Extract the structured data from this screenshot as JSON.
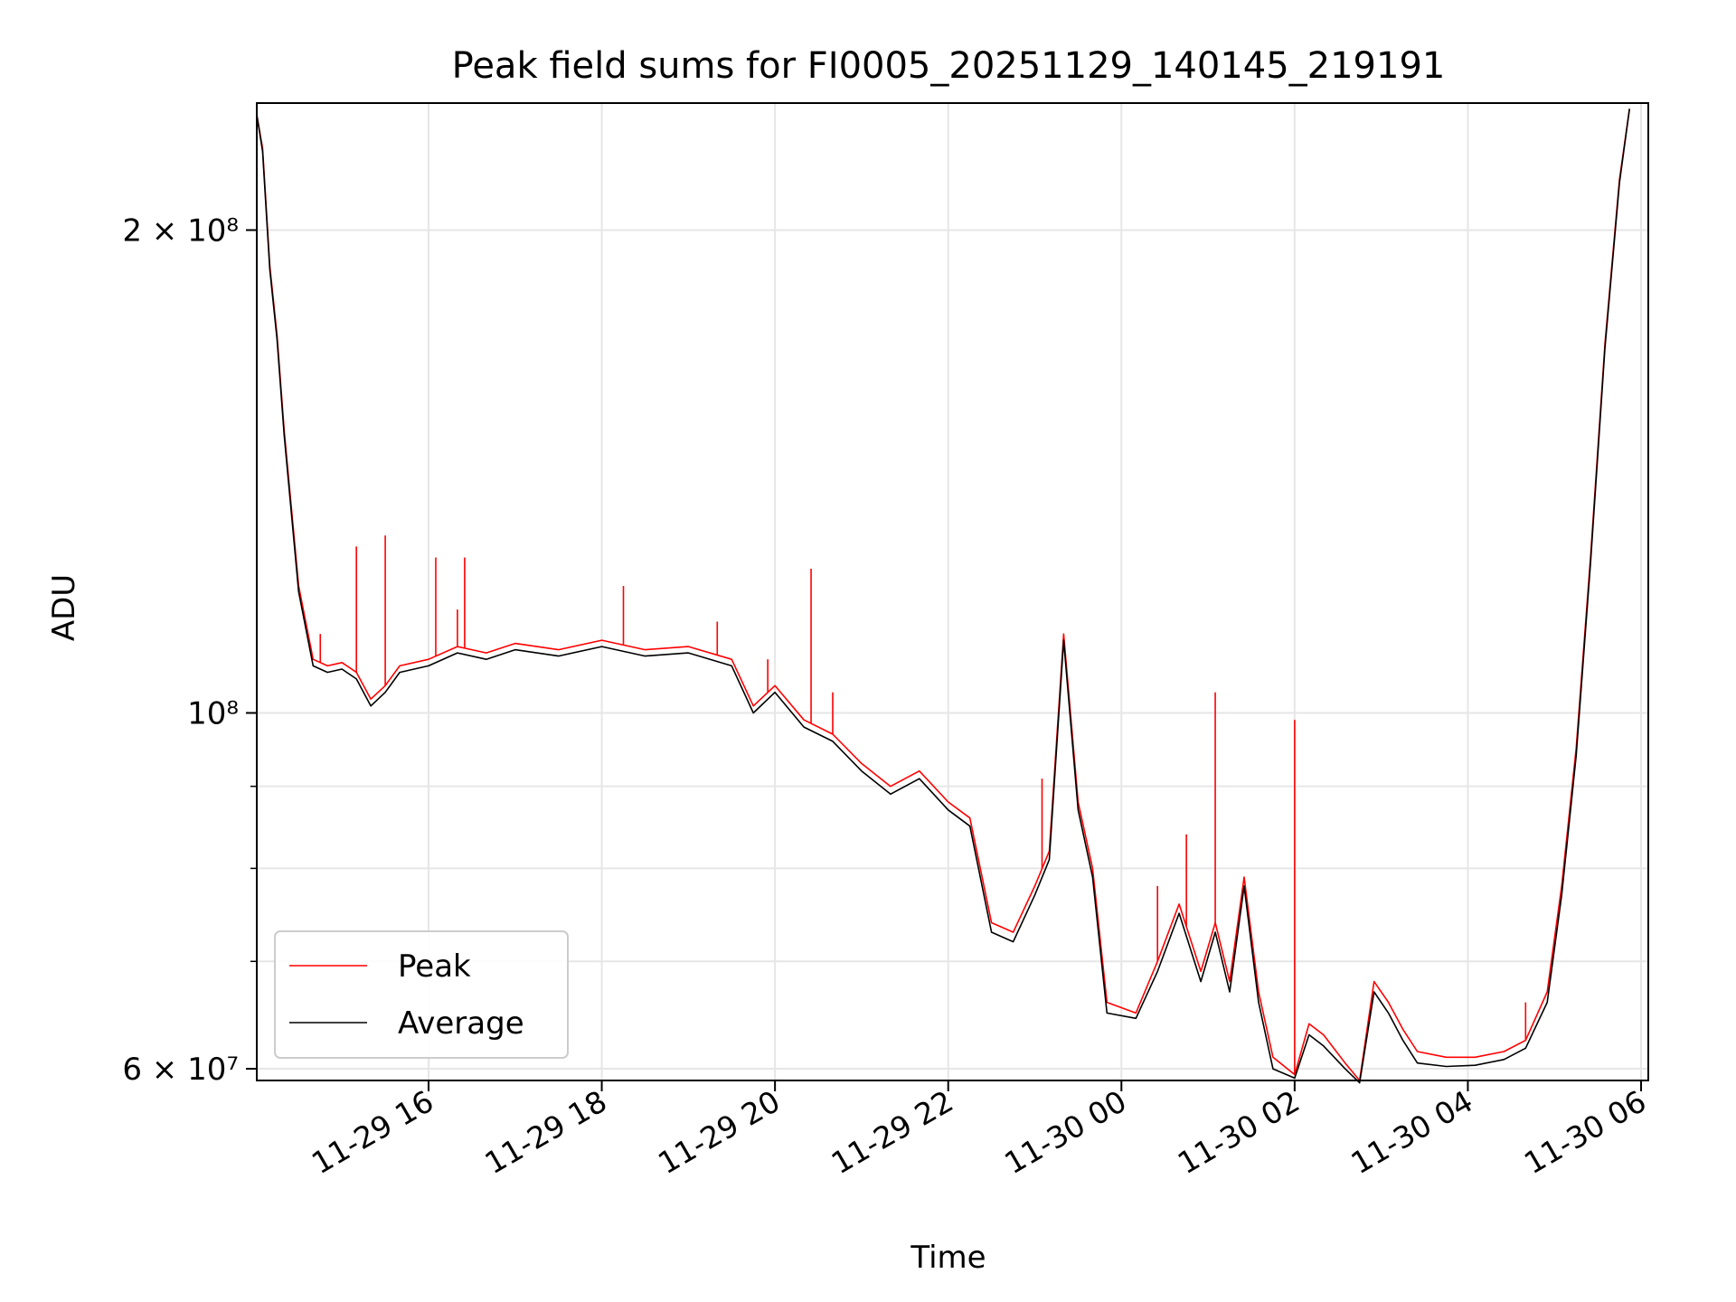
{
  "chart_data": {
    "type": "line",
    "title": "Peak field sums for FI0005_20251129_140145_219191",
    "xlabel": "Time",
    "ylabel": "ADU",
    "yscale": "log",
    "xlim": [
      "2025-11-29 14:01",
      "2025-11-30 06:05"
    ],
    "ylim": [
      59000000,
      240000000
    ],
    "grid": true,
    "legend_position": "lower-left",
    "x_ticks": [
      {
        "t": "2025-11-29 16:00",
        "label": "11-29 16"
      },
      {
        "t": "2025-11-29 18:00",
        "label": "11-29 18"
      },
      {
        "t": "2025-11-29 20:00",
        "label": "11-29 20"
      },
      {
        "t": "2025-11-29 22:00",
        "label": "11-29 22"
      },
      {
        "t": "2025-11-30 00:00",
        "label": "11-30 00"
      },
      {
        "t": "2025-11-30 02:00",
        "label": "11-30 02"
      },
      {
        "t": "2025-11-30 04:00",
        "label": "11-30 04"
      },
      {
        "t": "2025-11-30 06:00",
        "label": "11-30 06"
      }
    ],
    "y_ticks": [
      {
        "value": 60000000,
        "label": "6 × 10⁷"
      },
      {
        "value": 100000000,
        "label": "10⁸"
      },
      {
        "value": 200000000,
        "label": "2 × 10⁸"
      }
    ],
    "y_minor_ticks": [
      70000000,
      80000000,
      90000000
    ],
    "series": [
      {
        "name": "Peak",
        "color": "#ff0000",
        "x": [
          "2025-11-29 14:01",
          "2025-11-29 14:05",
          "2025-11-29 14:10",
          "2025-11-29 14:15",
          "2025-11-29 14:20",
          "2025-11-29 14:30",
          "2025-11-29 14:40",
          "2025-11-29 14:50",
          "2025-11-29 15:00",
          "2025-11-29 15:10",
          "2025-11-29 15:20",
          "2025-11-29 15:30",
          "2025-11-29 15:40",
          "2025-11-29 16:00",
          "2025-11-29 16:20",
          "2025-11-29 16:40",
          "2025-11-29 17:00",
          "2025-11-29 17:30",
          "2025-11-29 18:00",
          "2025-11-29 18:30",
          "2025-11-29 19:00",
          "2025-11-29 19:30",
          "2025-11-29 19:45",
          "2025-11-29 20:00",
          "2025-11-29 20:20",
          "2025-11-29 20:40",
          "2025-11-29 21:00",
          "2025-11-29 21:20",
          "2025-11-29 21:40",
          "2025-11-29 22:00",
          "2025-11-29 22:15",
          "2025-11-29 22:30",
          "2025-11-29 22:45",
          "2025-11-29 23:00",
          "2025-11-29 23:10",
          "2025-11-29 23:20",
          "2025-11-29 23:30",
          "2025-11-29 23:40",
          "2025-11-29 23:50",
          "2025-11-30 00:10",
          "2025-11-30 00:25",
          "2025-11-30 00:40",
          "2025-11-30 00:55",
          "2025-11-30 01:05",
          "2025-11-30 01:15",
          "2025-11-30 01:25",
          "2025-11-30 01:35",
          "2025-11-30 01:45",
          "2025-11-30 02:00",
          "2025-11-30 02:10",
          "2025-11-30 02:20",
          "2025-11-30 02:35",
          "2025-11-30 02:45",
          "2025-11-30 02:55",
          "2025-11-30 03:05",
          "2025-11-30 03:15",
          "2025-11-30 03:25",
          "2025-11-30 03:45",
          "2025-11-30 04:05",
          "2025-11-30 04:25",
          "2025-11-30 04:40",
          "2025-11-30 04:55",
          "2025-11-30 05:05",
          "2025-11-30 05:15",
          "2025-11-30 05:25",
          "2025-11-30 05:35",
          "2025-11-30 05:45",
          "2025-11-30 05:52"
        ],
        "y": [
          236000000,
          225000000,
          190000000,
          172000000,
          150000000,
          120000000,
          108000000,
          107000000,
          107500000,
          106000000,
          102000000,
          104000000,
          107000000,
          108000000,
          110000000,
          109000000,
          110500000,
          109500000,
          111000000,
          109500000,
          110000000,
          108000000,
          101000000,
          104000000,
          99000000,
          97000000,
          93000000,
          90000000,
          92000000,
          88000000,
          86000000,
          74000000,
          73000000,
          78000000,
          82000000,
          112000000,
          88000000,
          80000000,
          66000000,
          65000000,
          70000000,
          76000000,
          69000000,
          74000000,
          68000000,
          79000000,
          67000000,
          61000000,
          59500000,
          64000000,
          63000000,
          60500000,
          59000000,
          68000000,
          66000000,
          63500000,
          61500000,
          61000000,
          61000000,
          61500000,
          62500000,
          67000000,
          78000000,
          95000000,
          125000000,
          170000000,
          215000000,
          238000000
        ]
      },
      {
        "name": "Average",
        "color": "#000000",
        "x": [
          "2025-11-29 14:01",
          "2025-11-29 14:05",
          "2025-11-29 14:10",
          "2025-11-29 14:15",
          "2025-11-29 14:20",
          "2025-11-29 14:30",
          "2025-11-29 14:40",
          "2025-11-29 14:50",
          "2025-11-29 15:00",
          "2025-11-29 15:10",
          "2025-11-29 15:20",
          "2025-11-29 15:30",
          "2025-11-29 15:40",
          "2025-11-29 16:00",
          "2025-11-29 16:20",
          "2025-11-29 16:40",
          "2025-11-29 17:00",
          "2025-11-29 17:30",
          "2025-11-29 18:00",
          "2025-11-29 18:30",
          "2025-11-29 19:00",
          "2025-11-29 19:30",
          "2025-11-29 19:45",
          "2025-11-29 20:00",
          "2025-11-29 20:20",
          "2025-11-29 20:40",
          "2025-11-29 21:00",
          "2025-11-29 21:20",
          "2025-11-29 21:40",
          "2025-11-29 22:00",
          "2025-11-29 22:15",
          "2025-11-29 22:30",
          "2025-11-29 22:45",
          "2025-11-29 23:00",
          "2025-11-29 23:10",
          "2025-11-29 23:20",
          "2025-11-29 23:30",
          "2025-11-29 23:40",
          "2025-11-29 23:50",
          "2025-11-30 00:10",
          "2025-11-30 00:25",
          "2025-11-30 00:40",
          "2025-11-30 00:55",
          "2025-11-30 01:05",
          "2025-11-30 01:15",
          "2025-11-30 01:25",
          "2025-11-30 01:35",
          "2025-11-30 01:45",
          "2025-11-30 02:00",
          "2025-11-30 02:10",
          "2025-11-30 02:20",
          "2025-11-30 02:35",
          "2025-11-30 02:45",
          "2025-11-30 02:55",
          "2025-11-30 03:05",
          "2025-11-30 03:15",
          "2025-11-30 03:25",
          "2025-11-30 03:45",
          "2025-11-30 04:05",
          "2025-11-30 04:25",
          "2025-11-30 04:40",
          "2025-11-30 04:55",
          "2025-11-30 05:05",
          "2025-11-30 05:15",
          "2025-11-30 05:25",
          "2025-11-30 05:35",
          "2025-11-30 05:45",
          "2025-11-30 05:52"
        ],
        "y": [
          236000000,
          224000000,
          189000000,
          171000000,
          149000000,
          119000000,
          107000000,
          106000000,
          106500000,
          105000000,
          101000000,
          103000000,
          106000000,
          107000000,
          109000000,
          108000000,
          109500000,
          108500000,
          110000000,
          108500000,
          109000000,
          107000000,
          100000000,
          103000000,
          98000000,
          96000000,
          92000000,
          89000000,
          91000000,
          87000000,
          85000000,
          73000000,
          72000000,
          77000000,
          81000000,
          111000000,
          87000000,
          79000000,
          65000000,
          64500000,
          69000000,
          75000000,
          68000000,
          73000000,
          67000000,
          78000000,
          66000000,
          60000000,
          59200000,
          63000000,
          62000000,
          60000000,
          58800000,
          67000000,
          65000000,
          62500000,
          60500000,
          60200000,
          60300000,
          60800000,
          61800000,
          66000000,
          77000000,
          94000000,
          124000000,
          169000000,
          214000000,
          238000000
        ]
      }
    ],
    "peak_spikes": [
      {
        "t": "2025-11-29 14:45",
        "y": 112000000
      },
      {
        "t": "2025-11-29 15:10",
        "y": 127000000
      },
      {
        "t": "2025-11-29 15:30",
        "y": 129000000
      },
      {
        "t": "2025-11-29 16:05",
        "y": 125000000
      },
      {
        "t": "2025-11-29 16:20",
        "y": 116000000
      },
      {
        "t": "2025-11-29 16:25",
        "y": 125000000
      },
      {
        "t": "2025-11-29 18:15",
        "y": 120000000
      },
      {
        "t": "2025-11-29 19:20",
        "y": 114000000
      },
      {
        "t": "2025-11-29 19:55",
        "y": 108000000
      },
      {
        "t": "2025-11-29 20:25",
        "y": 123000000
      },
      {
        "t": "2025-11-29 20:40",
        "y": 103000000
      },
      {
        "t": "2025-11-29 23:05",
        "y": 91000000
      },
      {
        "t": "2025-11-30 00:25",
        "y": 78000000
      },
      {
        "t": "2025-11-30 00:45",
        "y": 84000000
      },
      {
        "t": "2025-11-30 01:05",
        "y": 103000000
      },
      {
        "t": "2025-11-30 02:00",
        "y": 99000000
      },
      {
        "t": "2025-11-30 04:40",
        "y": 66000000
      }
    ]
  }
}
